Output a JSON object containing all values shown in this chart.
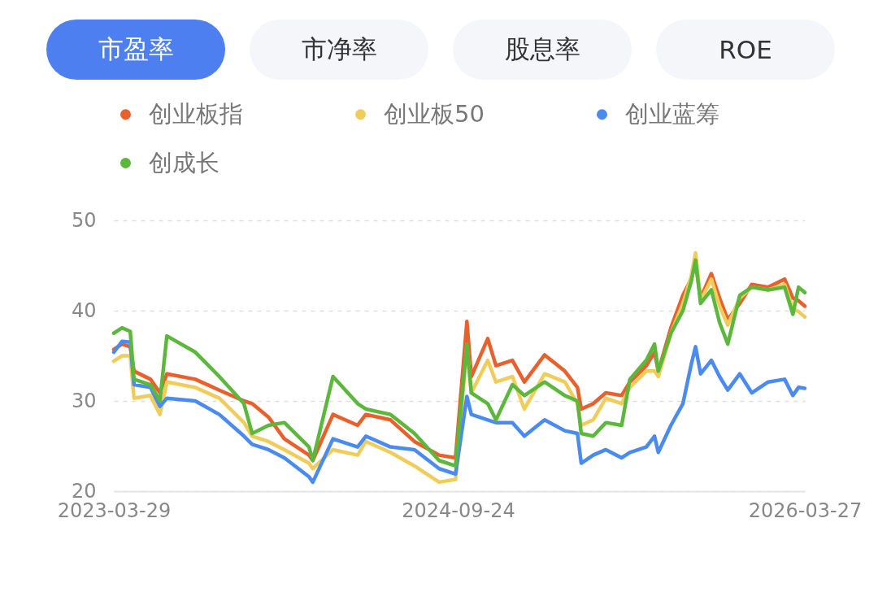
{
  "chart_data": {
    "type": "line",
    "annotations": [
      "市盈率",
      "市净率",
      "股息率",
      "ROE"
    ],
    "x": [
      "2023-03-29",
      "2023-04-11",
      "2023-04-24",
      "2023-04-30",
      "2023-05-26",
      "2023-06-10",
      "2023-06-21",
      "2023-08-05",
      "2023-09-12",
      "2023-10-21",
      "2023-11-03",
      "2023-11-29",
      "2023-12-24",
      "2024-02-01",
      "2024-02-07",
      "2024-03-10",
      "2024-04-18",
      "2024-05-01",
      "2024-06-09",
      "2024-07-17",
      "2024-08-25",
      "2024-09-20",
      "2024-10-08",
      "2024-10-15",
      "2024-11-10",
      "2024-11-23",
      "2024-12-19",
      "2025-01-07",
      "2025-02-08",
      "2025-03-12",
      "2025-04-01",
      "2025-04-07",
      "2025-04-26",
      "2025-05-16",
      "2025-06-10",
      "2025-06-23",
      "2025-07-19",
      "2025-08-01",
      "2025-08-07",
      "2025-08-27",
      "2025-09-15",
      "2025-09-28",
      "2025-10-05",
      "2025-10-13",
      "2025-10-30",
      "2025-11-12",
      "2025-11-25",
      "2025-12-14",
      "2026-01-02",
      "2026-01-28",
      "2026-02-23",
      "2026-03-08",
      "2026-03-17",
      "2026-03-27"
    ],
    "series": [
      {
        "name": "创业板指",
        "color": "#e8602c",
        "values": [
          35.7,
          36.3,
          36,
          33.3,
          32.4,
          30.9,
          33,
          32.4,
          31.2,
          30,
          29.7,
          28.2,
          25.8,
          24,
          23.4,
          28.5,
          27.3,
          28.5,
          27.9,
          25.5,
          24,
          23.7,
          38.8,
          32.7,
          36.9,
          33.9,
          34.5,
          32.1,
          35.1,
          33.3,
          31.5,
          29.1,
          29.7,
          30.9,
          30.6,
          32.1,
          33.9,
          35.4,
          33.3,
          38.1,
          41.7,
          43.5,
          45.3,
          41.4,
          44.1,
          41.4,
          39,
          40.8,
          42.9,
          42.6,
          43.5,
          41.4,
          41.1,
          40.5
        ]
      },
      {
        "name": "创业板50",
        "color": "#f0cc5a",
        "values": [
          34.4,
          35,
          35,
          30.3,
          30.6,
          28.5,
          32.1,
          31.5,
          30.3,
          27.6,
          26.1,
          25.5,
          24.6,
          23.1,
          22.5,
          24.6,
          24,
          25.5,
          24.3,
          22.8,
          21,
          21.3,
          36,
          30.9,
          34.5,
          32.1,
          32.7,
          29.1,
          33,
          32.1,
          29.7,
          27.3,
          27.9,
          30.3,
          29.7,
          31.5,
          33.3,
          33.3,
          32.7,
          37.5,
          40.8,
          43.8,
          46.4,
          41.1,
          43.5,
          40.5,
          38.4,
          41.4,
          42.6,
          42.3,
          42.9,
          40.2,
          39.9,
          39.3
        ]
      },
      {
        "name": "创业蓝筹",
        "color": "#4b8bf0",
        "values": [
          35.4,
          36.6,
          36.5,
          31.8,
          31.5,
          29.4,
          30.3,
          30,
          28.5,
          26.1,
          25.2,
          24.6,
          23.7,
          21.6,
          21,
          25.8,
          24.9,
          26.1,
          24.9,
          24.6,
          22.5,
          21.9,
          30.5,
          28.5,
          27.9,
          27.6,
          27.6,
          26.1,
          27.9,
          26.7,
          26.4,
          23.1,
          24,
          24.6,
          23.7,
          24.3,
          24.9,
          26.1,
          24.3,
          27.3,
          29.7,
          34,
          36,
          33,
          34.5,
          32.7,
          31.2,
          33,
          30.9,
          32.1,
          32.4,
          30.6,
          31.5,
          31.4
        ]
      },
      {
        "name": "创成长",
        "color": "#5cb83c",
        "values": [
          37.5,
          38.1,
          37.7,
          32.4,
          31.8,
          30,
          37.2,
          35.4,
          32.7,
          29.7,
          26.4,
          27.3,
          27.6,
          24.9,
          23.4,
          32.7,
          29.7,
          29.1,
          28.5,
          26.4,
          23.4,
          22.8,
          36.3,
          30.9,
          29.7,
          27.9,
          31.8,
          30.6,
          32.1,
          30.6,
          30,
          26.4,
          26.1,
          27.6,
          27.3,
          32.4,
          34.5,
          36.3,
          33.3,
          37.5,
          40,
          43.2,
          45.6,
          40.8,
          42.3,
          38.7,
          36.3,
          41.7,
          42.6,
          42.3,
          42.6,
          39.6,
          42.6,
          42
        ]
      }
    ],
    "xlim": [
      "2023-03-29",
      "2026-03-27"
    ],
    "xticks": [
      "2023-03-29",
      "2024-09-24",
      "2026-03-27"
    ],
    "ylim": [
      20,
      50
    ],
    "yticks": [
      20,
      30,
      40,
      50
    ],
    "grid": "y",
    "legend": "top left",
    "marker": "none",
    "line_style": "solid"
  }
}
